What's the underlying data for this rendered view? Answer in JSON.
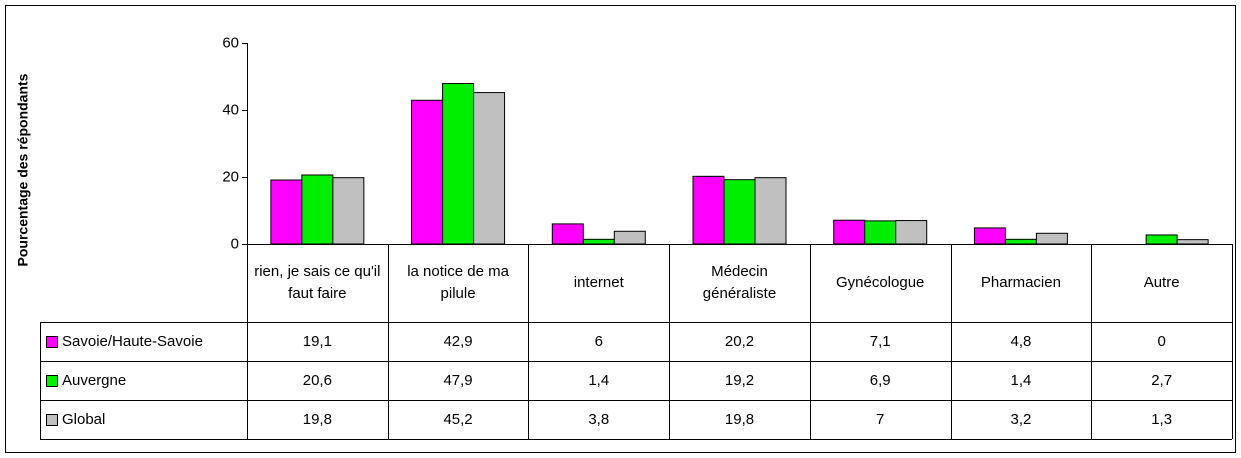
{
  "chart_data": {
    "type": "bar",
    "y_label": "Pourcentage des répondants",
    "categories": [
      "rien, je sais ce qu'il faut faire",
      "la notice de ma pilule",
      "internet",
      "Médecin généraliste",
      "Gynécologue",
      "Pharmacien",
      "Autre"
    ],
    "series": [
      {
        "name": "Savoie/Haute-Savoie",
        "color": "#ff00ff",
        "values": [
          19.1,
          42.9,
          6,
          20.2,
          7.1,
          4.8,
          0
        ],
        "value_labels": [
          "19,1",
          "42,9",
          "6",
          "20,2",
          "7,1",
          "4,8",
          "0"
        ]
      },
      {
        "name": "Auvergne",
        "color": "#00ee00",
        "values": [
          20.6,
          47.9,
          1.4,
          19.2,
          6.9,
          1.4,
          2.7
        ],
        "value_labels": [
          "20,6",
          "47,9",
          "1,4",
          "19,2",
          "6,9",
          "1,4",
          "2,7"
        ]
      },
      {
        "name": "Global",
        "color": "#c0c0c0",
        "values": [
          19.8,
          45.2,
          3.8,
          19.8,
          7,
          3.2,
          1.3
        ],
        "value_labels": [
          "19,8",
          "45,2",
          "3,8",
          "19,8",
          "7",
          "3,2",
          "1,3"
        ]
      }
    ],
    "ylim": [
      0,
      60
    ],
    "yticks": [
      0,
      20,
      40,
      60
    ],
    "grid": false
  }
}
